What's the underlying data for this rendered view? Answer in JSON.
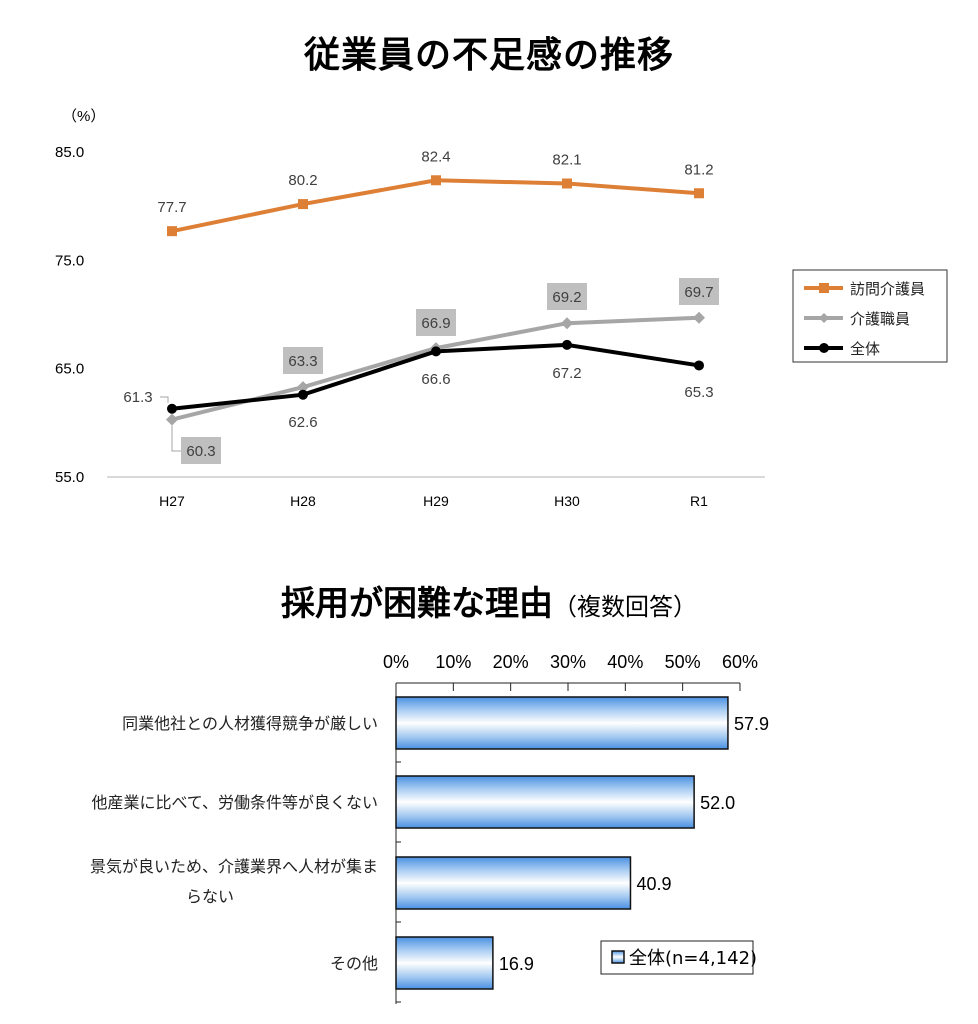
{
  "chart_data": [
    {
      "type": "line",
      "title": "従業員の不足感の推移",
      "ylabel": "（%）",
      "xlabel": "",
      "categories": [
        "H27",
        "H28",
        "H29",
        "H30",
        "R1"
      ],
      "ylim": [
        55,
        85
      ],
      "yticks": [
        "85.0",
        "75.0",
        "65.0",
        "55.0"
      ],
      "ytick_values": [
        85,
        75,
        65,
        55
      ],
      "grid": "baseline-only",
      "legend_position": "right",
      "series": [
        {
          "name": "訪問介護員",
          "color": "#DE7F36",
          "marker": "square",
          "values": [
            77.7,
            80.2,
            82.4,
            82.1,
            81.2
          ],
          "labels": [
            "77.7",
            "80.2",
            "82.4",
            "82.1",
            "81.2"
          ]
        },
        {
          "name": "介護職員",
          "color": "#A6A6A6",
          "marker": "diamond",
          "values": [
            60.3,
            63.3,
            66.9,
            69.2,
            69.7
          ],
          "labels": [
            "60.3",
            "63.3",
            "66.9",
            "69.2",
            "69.7"
          ]
        },
        {
          "name": "全体",
          "color": "#000000",
          "marker": "circle",
          "values": [
            61.3,
            62.6,
            66.6,
            67.2,
            65.3
          ],
          "labels": [
            "61.3",
            "62.6",
            "66.6",
            "67.2",
            "65.3"
          ]
        }
      ]
    },
    {
      "type": "bar",
      "orientation": "horizontal",
      "title": "採用が困難な理由",
      "subtitle": "（複数回答）",
      "categories": [
        [
          "同業他社との人材獲得競争が厳しい"
        ],
        [
          "他産業に比べて、労働条件等が良くない"
        ],
        [
          "景気が良いため、介護業界へ人材が集ま",
          "らない"
        ],
        [
          "その他"
        ]
      ],
      "values": [
        57.9,
        52.0,
        40.9,
        16.9
      ],
      "value_labels": [
        "57.9",
        "52.0",
        "40.9",
        "16.9"
      ],
      "xlim": [
        0,
        60
      ],
      "xticks": [
        "0%",
        "10%",
        "20%",
        "30%",
        "40%",
        "50%",
        "60%"
      ],
      "legend": "全体(n=4,142)",
      "legend_position": "bottom-right",
      "bar_color": "#4A90E2"
    }
  ]
}
